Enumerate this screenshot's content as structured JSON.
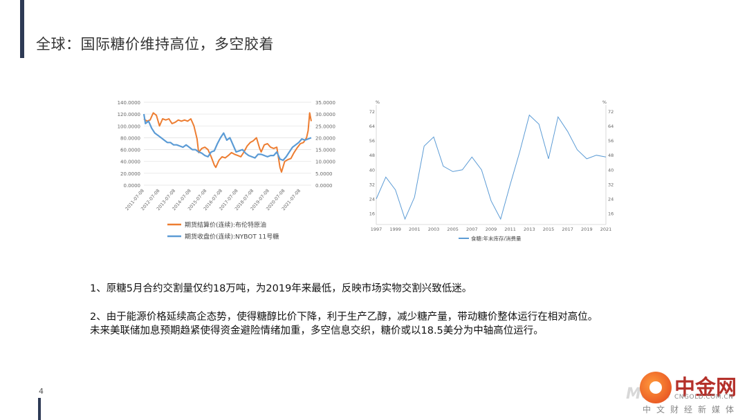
{
  "page": {
    "title": "全球：国际糖价维持高位，多空胶着",
    "page_number": "4",
    "paragraph1": "1、原糖5月合约交割量仅约18万吨，为2019年来最低，反映市场实物交割兴致低迷。",
    "paragraph2_line1": "2、由于能源价格延续高企态势，使得糖醇比价下降，利于生产乙醇，减少糖产量，带动糖价整体运行在相对高位。",
    "paragraph2_line2": "未来美联储加息预期趋紧使得资金避险情绪加重，多空信息交织，糖价或以18.5美分为中轴高位运行。"
  },
  "logo": {
    "brand": "中金网",
    "domain": "CNGOLD.COM.CN",
    "media": "中文财经新媒体",
    "watermark": "Moce"
  },
  "chart_data": [
    {
      "type": "line",
      "y_left_ticks": [
        "140.0000",
        "120.0000",
        "100.0000",
        "80.0000",
        "60.0000",
        "40.0000",
        "20.0000",
        "0.0000"
      ],
      "y_right_ticks": [
        "35.0000",
        "30.0000",
        "25.0000",
        "20.0000",
        "15.0000",
        "10.0000",
        "5.0000",
        "0.0000"
      ],
      "ylim_left": [
        0,
        140
      ],
      "ylim_right": [
        0,
        35
      ],
      "x_ticks": [
        "2011-07-08",
        "2012-07-08",
        "2013-07-08",
        "2014-07-08",
        "2015-07-08",
        "2016-07-08",
        "2017-07-08",
        "2018-07-08",
        "2019-07-08",
        "2020-07-08",
        "2021-07-08"
      ],
      "x_range": [
        2011.5,
        2022.2
      ],
      "series": [
        {
          "name": "期货结算价(连续):布伦特原油",
          "axis": "left",
          "color": "#ed7d31",
          "x": [
            2011.5,
            2011.7,
            2011.9,
            2012.1,
            2012.3,
            2012.5,
            2012.7,
            2012.9,
            2013.1,
            2013.3,
            2013.5,
            2013.7,
            2013.9,
            2014.1,
            2014.3,
            2014.5,
            2014.7,
            2014.9,
            2015.0,
            2015.2,
            2015.4,
            2015.6,
            2015.8,
            2016.0,
            2016.1,
            2016.3,
            2016.5,
            2016.7,
            2016.9,
            2017.1,
            2017.3,
            2017.5,
            2017.7,
            2017.9,
            2018.1,
            2018.3,
            2018.5,
            2018.7,
            2018.9,
            2019.0,
            2019.2,
            2019.4,
            2019.6,
            2019.8,
            2020.0,
            2020.2,
            2020.3,
            2020.5,
            2020.7,
            2020.9,
            2021.1,
            2021.3,
            2021.5,
            2021.7,
            2021.9,
            2022.0,
            2022.1,
            2022.2
          ],
          "y": [
            112,
            108,
            110,
            122,
            118,
            100,
            112,
            110,
            112,
            104,
            106,
            110,
            108,
            110,
            108,
            112,
            100,
            78,
            55,
            62,
            64,
            60,
            48,
            34,
            30,
            42,
            48,
            46,
            50,
            55,
            52,
            50,
            48,
            56,
            66,
            72,
            75,
            80,
            62,
            56,
            68,
            70,
            64,
            62,
            64,
            30,
            22,
            40,
            43,
            45,
            55,
            63,
            70,
            72,
            80,
            92,
            122,
            108
          ]
        },
        {
          "name": "期货收盘价(连续):NYBOT 11号糖",
          "axis": "right",
          "color": "#5b9bd5",
          "x": [
            2011.5,
            2011.6,
            2011.8,
            2012.0,
            2012.2,
            2012.4,
            2012.6,
            2012.8,
            2013.0,
            2013.2,
            2013.4,
            2013.6,
            2013.8,
            2014.0,
            2014.2,
            2014.4,
            2014.6,
            2014.8,
            2015.0,
            2015.2,
            2015.4,
            2015.6,
            2015.8,
            2016.0,
            2016.2,
            2016.4,
            2016.6,
            2016.8,
            2017.0,
            2017.2,
            2017.4,
            2017.6,
            2017.8,
            2018.0,
            2018.2,
            2018.4,
            2018.6,
            2018.8,
            2019.0,
            2019.2,
            2019.4,
            2019.6,
            2019.8,
            2020.0,
            2020.2,
            2020.4,
            2020.6,
            2020.8,
            2021.0,
            2021.2,
            2021.4,
            2021.6,
            2021.8,
            2022.0,
            2022.2
          ],
          "y": [
            30,
            26,
            27,
            24,
            22,
            21,
            20,
            19,
            18,
            18,
            17,
            17,
            16.5,
            16,
            17,
            16,
            15,
            15,
            14,
            13.5,
            12.5,
            12,
            14,
            14.5,
            17.5,
            20,
            22,
            19,
            20,
            17,
            14,
            14.5,
            15,
            13.5,
            12.5,
            12,
            11.5,
            13,
            13,
            12.5,
            12,
            12.5,
            12.5,
            14,
            11,
            10.5,
            12,
            14,
            16,
            17,
            18,
            19.5,
            19,
            19.5,
            20
          ]
        }
      ]
    },
    {
      "type": "line",
      "y_unit_left": "%",
      "y_unit_right": "%",
      "y_ticks": [
        72,
        64,
        56,
        48,
        40,
        32,
        24,
        16
      ],
      "ylim": [
        10,
        74
      ],
      "x_ticks": [
        "1997",
        "1999",
        "2001",
        "2003",
        "2005",
        "2007",
        "2009",
        "2011",
        "2013",
        "2015",
        "2017",
        "2019",
        "2021"
      ],
      "xlim": [
        1997,
        2021
      ],
      "series": [
        {
          "name": "食糖:年末库存/消费量",
          "color": "#5b9bd5",
          "x": [
            1997,
            1998,
            1999,
            2000,
            2001,
            2002,
            2003,
            2004,
            2005,
            2006,
            2007,
            2008,
            2009,
            2010,
            2011,
            2012,
            2013,
            2014,
            2015,
            2016,
            2017,
            2018,
            2019,
            2020,
            2021
          ],
          "y": [
            24,
            36,
            29,
            13,
            25,
            53,
            58,
            42,
            39,
            40,
            47,
            40,
            23,
            13,
            32,
            50,
            70,
            65,
            46,
            69,
            61,
            51,
            46,
            48,
            47
          ]
        }
      ]
    }
  ]
}
